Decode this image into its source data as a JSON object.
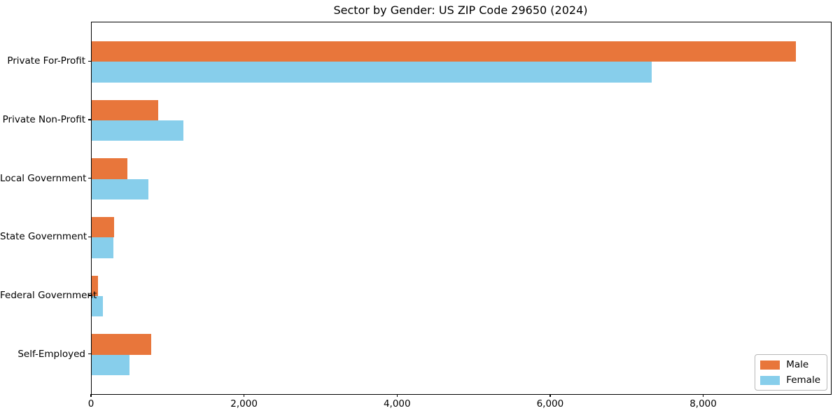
{
  "chart_data": {
    "type": "bar",
    "orientation": "horizontal",
    "title": "Sector by Gender: US ZIP Code 29650 (2024)",
    "categories": [
      "Private For-Profit",
      "Private Non-Profit",
      "Local Government",
      "State Government",
      "Federal Government",
      "Self-Employed"
    ],
    "series": [
      {
        "name": "Male",
        "color": "#e8763b",
        "values": [
          9200,
          870,
          470,
          295,
          80,
          775
        ]
      },
      {
        "name": "Female",
        "color": "#87ceeb",
        "values": [
          7320,
          1200,
          740,
          280,
          150,
          490
        ]
      }
    ],
    "xlim": [
      0,
      9660
    ],
    "xticks": [
      0,
      2000,
      4000,
      6000,
      8000
    ],
    "xtick_labels": [
      "0",
      "2,000",
      "4,000",
      "6,000",
      "8,000"
    ],
    "ylabel": "",
    "xlabel": "",
    "grid": false,
    "legend_position": "lower right",
    "bar_height_fraction": 0.35,
    "colors": {
      "spine": "#000000",
      "background": "#ffffff",
      "legend_border": "#b7b7b7"
    }
  }
}
